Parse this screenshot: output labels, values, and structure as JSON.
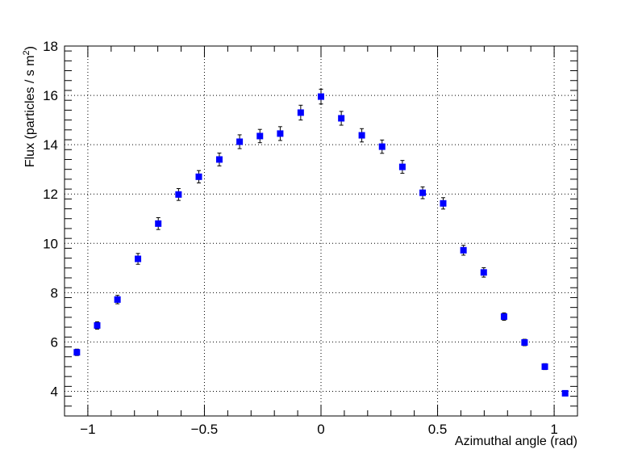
{
  "chart_data": {
    "type": "scatter",
    "title": "",
    "xlabel": "Azimuthal angle (rad)",
    "ylabel_main": "Flux (particles / s m",
    "ylabel_sup": "2",
    "ylabel_close": ")",
    "xlim": [
      -1.1,
      1.1
    ],
    "ylim": [
      3,
      18
    ],
    "x_ticks": [
      -1,
      -0.5,
      0,
      0.5,
      1
    ],
    "x_tick_labels": [
      "−1",
      "−0.5",
      "0",
      "0.5",
      "1"
    ],
    "y_ticks": [
      4,
      6,
      8,
      10,
      12,
      14,
      16,
      18
    ],
    "y_tick_labels": [
      "4",
      "6",
      "8",
      "10",
      "12",
      "14",
      "16",
      "18"
    ],
    "grid": true,
    "marker_color": "#0000ff",
    "points": [
      {
        "x": -1.047,
        "y": 5.58,
        "err": 0.13
      },
      {
        "x": -0.96,
        "y": 6.67,
        "err": 0.15
      },
      {
        "x": -0.873,
        "y": 7.72,
        "err": 0.17
      },
      {
        "x": -0.785,
        "y": 9.37,
        "err": 0.22
      },
      {
        "x": -0.698,
        "y": 10.8,
        "err": 0.24
      },
      {
        "x": -0.611,
        "y": 11.98,
        "err": 0.24
      },
      {
        "x": -0.524,
        "y": 12.7,
        "err": 0.25
      },
      {
        "x": -0.436,
        "y": 13.4,
        "err": 0.26
      },
      {
        "x": -0.349,
        "y": 14.12,
        "err": 0.28
      },
      {
        "x": -0.262,
        "y": 14.35,
        "err": 0.27
      },
      {
        "x": -0.175,
        "y": 14.45,
        "err": 0.28
      },
      {
        "x": -0.087,
        "y": 15.3,
        "err": 0.3
      },
      {
        "x": 0.0,
        "y": 15.95,
        "err": 0.3
      },
      {
        "x": 0.087,
        "y": 15.07,
        "err": 0.28
      },
      {
        "x": 0.175,
        "y": 14.38,
        "err": 0.27
      },
      {
        "x": 0.262,
        "y": 13.92,
        "err": 0.27
      },
      {
        "x": 0.349,
        "y": 13.1,
        "err": 0.26
      },
      {
        "x": 0.436,
        "y": 12.05,
        "err": 0.24
      },
      {
        "x": 0.524,
        "y": 11.62,
        "err": 0.23
      },
      {
        "x": 0.611,
        "y": 9.72,
        "err": 0.2
      },
      {
        "x": 0.698,
        "y": 8.82,
        "err": 0.19
      },
      {
        "x": 0.785,
        "y": 7.03,
        "err": 0.15
      },
      {
        "x": 0.873,
        "y": 5.98,
        "err": 0.13
      },
      {
        "x": 0.96,
        "y": 5.0,
        "err": 0.12
      },
      {
        "x": 1.047,
        "y": 3.92,
        "err": 0.1
      }
    ]
  }
}
